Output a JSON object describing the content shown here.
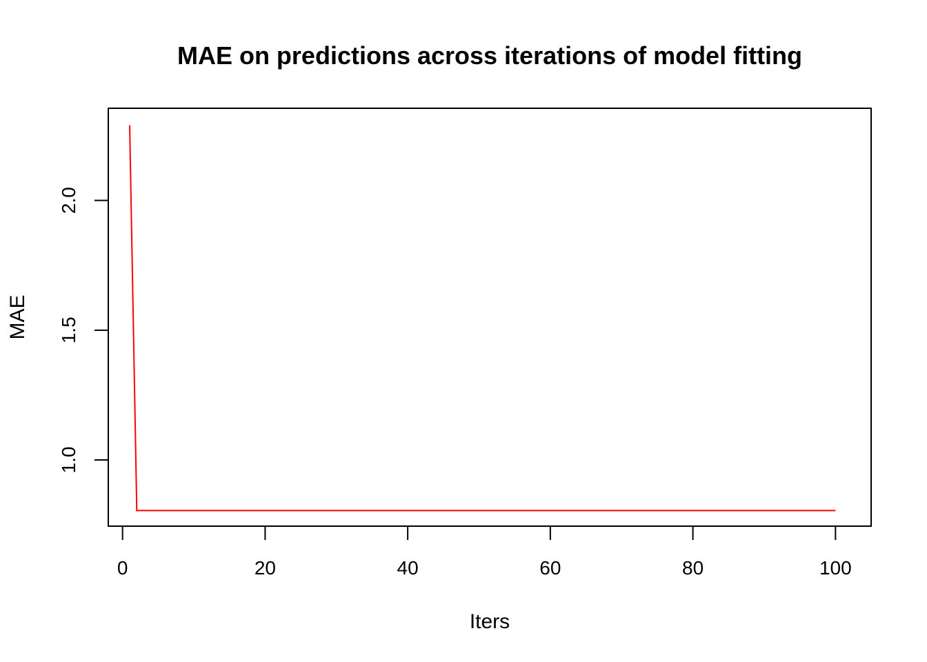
{
  "chart_data": {
    "type": "line",
    "title": "MAE on predictions across iterations of model fitting",
    "xlabel": "Iters",
    "ylabel": "MAE",
    "xlim": [
      -2,
      105
    ],
    "ylim": [
      0.745,
      2.355
    ],
    "x_ticks": [
      0,
      20,
      40,
      60,
      80,
      100
    ],
    "y_ticks": [
      1.0,
      1.5,
      2.0
    ],
    "x_tick_labels": [
      "0",
      "20",
      "40",
      "60",
      "80",
      "100"
    ],
    "y_tick_labels": [
      "1.0",
      "1.5",
      "2.0"
    ],
    "grid": false,
    "series": [
      {
        "color": "#ff0000",
        "x": [
          1,
          2,
          100
        ],
        "y": [
          2.29,
          0.805,
          0.805
        ]
      }
    ]
  }
}
